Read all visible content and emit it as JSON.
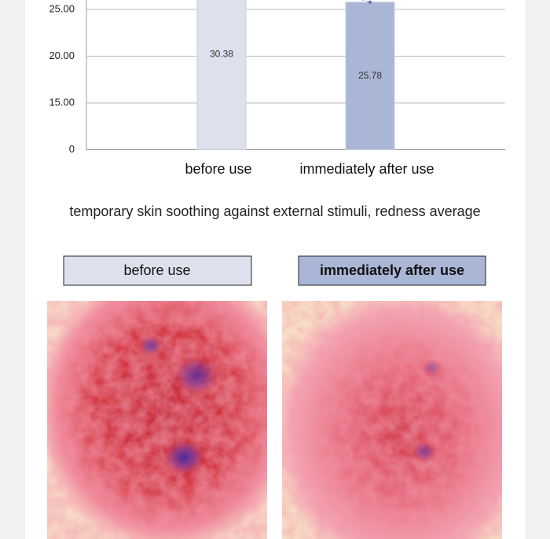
{
  "chart_data": {
    "type": "bar",
    "categories": [
      "before use",
      "immediately after use"
    ],
    "values": [
      30.38,
      25.78
    ],
    "colors": [
      "#dde1ee",
      "#aab6d6"
    ],
    "yticks": [
      0,
      {
        "value": 15,
        "label": "15.00"
      },
      {
        "value": 20,
        "label": "20.00"
      },
      {
        "value": 25,
        "label": "25.00"
      }
    ],
    "grid": true
  },
  "caption": "temporary skin soothing against external stimuli, redness average",
  "panels": [
    {
      "label": "before use"
    },
    {
      "label": "immediately after use"
    }
  ]
}
